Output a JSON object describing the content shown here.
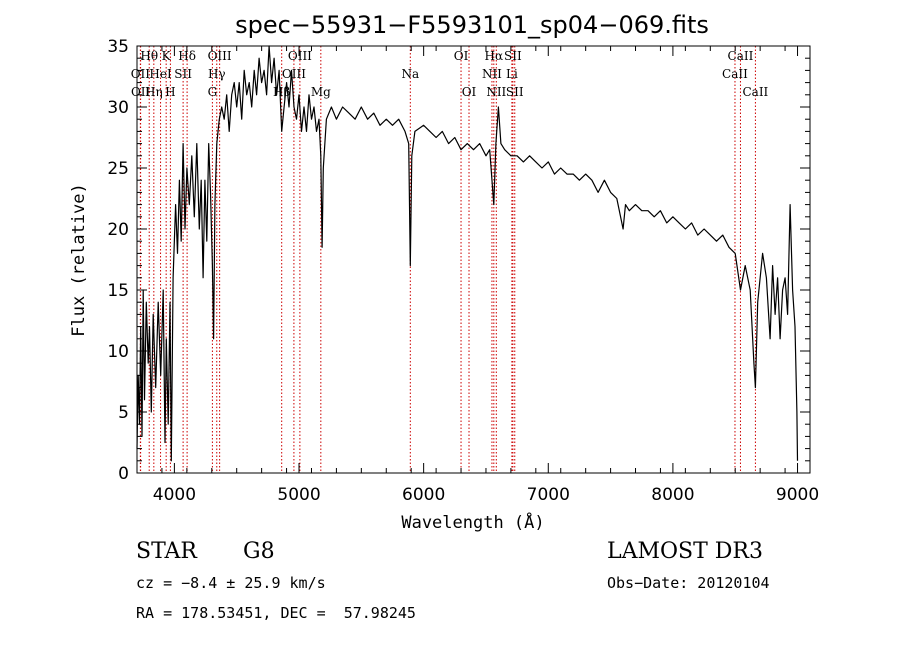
{
  "chart_data": {
    "type": "line",
    "title": "spec−55931−F5593101_sp04−069.fits",
    "xlabel": "Wavelength (Å)",
    "ylabel": "Flux (relative)",
    "xlim": [
      3700,
      9100
    ],
    "ylim": [
      0,
      35
    ],
    "xticks": [
      4000,
      5000,
      6000,
      7000,
      8000,
      9000
    ],
    "yticks": [
      0,
      5,
      10,
      15,
      20,
      25,
      30,
      35
    ],
    "line_color": "#000000",
    "marker_color": "#cc0000",
    "spectral_lines": [
      {
        "label": "Hθ",
        "wavelength": 3798,
        "row": 0
      },
      {
        "label": "K",
        "wavelength": 3934,
        "row": 0
      },
      {
        "label": "Hδ",
        "wavelength": 4102,
        "row": 0
      },
      {
        "label": "OIII",
        "wavelength": 4363,
        "row": 0
      },
      {
        "label": "OIII",
        "wavelength": 5007,
        "row": 0
      },
      {
        "label": "OI",
        "wavelength": 6300,
        "row": 0
      },
      {
        "label": "Hα",
        "wavelength": 6563,
        "row": 0
      },
      {
        "label": "SII",
        "wavelength": 6716,
        "row": 0
      },
      {
        "label": "CaII",
        "wavelength": 8542,
        "row": 0
      },
      {
        "label": "OII",
        "wavelength": 3727,
        "row": 1
      },
      {
        "label": "HeI",
        "wavelength": 3889,
        "row": 1
      },
      {
        "label": "SII",
        "wavelength": 4070,
        "row": 1
      },
      {
        "label": "Hγ",
        "wavelength": 4340,
        "row": 1
      },
      {
        "label": "OIII",
        "wavelength": 4959,
        "row": 1
      },
      {
        "label": "NII",
        "wavelength": 6548,
        "row": 1
      },
      {
        "label": "Li",
        "wavelength": 6708,
        "row": 1
      },
      {
        "label": "CaII",
        "wavelength": 8498,
        "row": 1
      },
      {
        "label": "OII",
        "wavelength": 3729,
        "row": 2
      },
      {
        "label": "Hη",
        "wavelength": 3835,
        "row": 2
      },
      {
        "label": "H",
        "wavelength": 3968,
        "row": 2
      },
      {
        "label": "G",
        "wavelength": 4305,
        "row": 2
      },
      {
        "label": "Hβ",
        "wavelength": 4861,
        "row": 2
      },
      {
        "label": "Mg",
        "wavelength": 5175,
        "row": 2
      },
      {
        "label": "Na",
        "wavelength": 5893,
        "row": 1
      },
      {
        "label": "OI",
        "wavelength": 6364,
        "row": 2
      },
      {
        "label": "NII",
        "wavelength": 6583,
        "row": 2
      },
      {
        "label": "SII",
        "wavelength": 6731,
        "row": 2
      },
      {
        "label": "CaII",
        "wavelength": 8662,
        "row": 2
      }
    ],
    "spectrum": [
      [
        3700,
        2
      ],
      [
        3710,
        8
      ],
      [
        3720,
        4
      ],
      [
        3730,
        12
      ],
      [
        3740,
        3
      ],
      [
        3750,
        15
      ],
      [
        3760,
        6
      ],
      [
        3775,
        14
      ],
      [
        3790,
        9
      ],
      [
        3800,
        12
      ],
      [
        3815,
        5
      ],
      [
        3830,
        13
      ],
      [
        3850,
        7
      ],
      [
        3870,
        14
      ],
      [
        3890,
        8
      ],
      [
        3910,
        15
      ],
      [
        3925,
        2.5
      ],
      [
        3935,
        11
      ],
      [
        3950,
        4
      ],
      [
        3965,
        14
      ],
      [
        3975,
        1
      ],
      [
        3990,
        16
      ],
      [
        4010,
        22
      ],
      [
        4025,
        18
      ],
      [
        4040,
        24
      ],
      [
        4055,
        19
      ],
      [
        4070,
        27
      ],
      [
        4085,
        20
      ],
      [
        4100,
        25
      ],
      [
        4120,
        22
      ],
      [
        4140,
        26
      ],
      [
        4160,
        21
      ],
      [
        4180,
        27
      ],
      [
        4200,
        20
      ],
      [
        4215,
        24
      ],
      [
        4230,
        16
      ],
      [
        4245,
        24
      ],
      [
        4260,
        19
      ],
      [
        4275,
        27
      ],
      [
        4290,
        23
      ],
      [
        4305,
        17
      ],
      [
        4315,
        11
      ],
      [
        4325,
        22
      ],
      [
        4340,
        27
      ],
      [
        4360,
        29
      ],
      [
        4380,
        30
      ],
      [
        4400,
        29
      ],
      [
        4420,
        31
      ],
      [
        4440,
        28
      ],
      [
        4460,
        31
      ],
      [
        4480,
        32
      ],
      [
        4500,
        30
      ],
      [
        4520,
        32
      ],
      [
        4540,
        29
      ],
      [
        4560,
        33
      ],
      [
        4580,
        31
      ],
      [
        4600,
        32
      ],
      [
        4620,
        30
      ],
      [
        4640,
        33
      ],
      [
        4660,
        31
      ],
      [
        4680,
        34
      ],
      [
        4700,
        32
      ],
      [
        4720,
        33
      ],
      [
        4740,
        31
      ],
      [
        4760,
        35
      ],
      [
        4780,
        32
      ],
      [
        4800,
        34
      ],
      [
        4820,
        31
      ],
      [
        4840,
        33
      ],
      [
        4861,
        28
      ],
      [
        4880,
        30
      ],
      [
        4900,
        32
      ],
      [
        4920,
        30
      ],
      [
        4940,
        33
      ],
      [
        4960,
        30
      ],
      [
        4980,
        29
      ],
      [
        5000,
        31
      ],
      [
        5020,
        28
      ],
      [
        5040,
        30
      ],
      [
        5060,
        28
      ],
      [
        5080,
        31
      ],
      [
        5100,
        29
      ],
      [
        5120,
        30
      ],
      [
        5140,
        28
      ],
      [
        5160,
        29
      ],
      [
        5175,
        26
      ],
      [
        5185,
        18.5
      ],
      [
        5195,
        25
      ],
      [
        5220,
        29
      ],
      [
        5260,
        30
      ],
      [
        5300,
        29
      ],
      [
        5350,
        30
      ],
      [
        5400,
        29.5
      ],
      [
        5450,
        29
      ],
      [
        5500,
        30
      ],
      [
        5550,
        29
      ],
      [
        5600,
        29.5
      ],
      [
        5650,
        28.5
      ],
      [
        5700,
        29
      ],
      [
        5750,
        28.5
      ],
      [
        5800,
        29
      ],
      [
        5850,
        28
      ],
      [
        5880,
        27
      ],
      [
        5893,
        17
      ],
      [
        5905,
        26
      ],
      [
        5930,
        28
      ],
      [
        6000,
        28.5
      ],
      [
        6050,
        28
      ],
      [
        6100,
        27.5
      ],
      [
        6150,
        28
      ],
      [
        6200,
        27
      ],
      [
        6250,
        27.5
      ],
      [
        6300,
        26.5
      ],
      [
        6350,
        27
      ],
      [
        6400,
        26.5
      ],
      [
        6450,
        27
      ],
      [
        6500,
        26
      ],
      [
        6530,
        26.5
      ],
      [
        6563,
        22
      ],
      [
        6580,
        27
      ],
      [
        6600,
        30
      ],
      [
        6620,
        27
      ],
      [
        6650,
        26.5
      ],
      [
        6700,
        26
      ],
      [
        6750,
        26
      ],
      [
        6800,
        25.5
      ],
      [
        6850,
        26
      ],
      [
        6900,
        25.5
      ],
      [
        6950,
        25
      ],
      [
        7000,
        25.5
      ],
      [
        7050,
        24.5
      ],
      [
        7100,
        25
      ],
      [
        7150,
        24.5
      ],
      [
        7200,
        24.5
      ],
      [
        7250,
        24
      ],
      [
        7300,
        24.5
      ],
      [
        7350,
        24
      ],
      [
        7400,
        23
      ],
      [
        7450,
        24
      ],
      [
        7500,
        23
      ],
      [
        7550,
        22.5
      ],
      [
        7600,
        20
      ],
      [
        7620,
        22
      ],
      [
        7650,
        21.5
      ],
      [
        7700,
        22
      ],
      [
        7750,
        21.5
      ],
      [
        7800,
        21.5
      ],
      [
        7850,
        21
      ],
      [
        7900,
        21.5
      ],
      [
        7950,
        20.5
      ],
      [
        8000,
        21
      ],
      [
        8050,
        20.5
      ],
      [
        8100,
        20
      ],
      [
        8150,
        20.5
      ],
      [
        8200,
        19.5
      ],
      [
        8250,
        20
      ],
      [
        8300,
        19.5
      ],
      [
        8350,
        19
      ],
      [
        8400,
        19.5
      ],
      [
        8450,
        18.5
      ],
      [
        8500,
        18
      ],
      [
        8542,
        15
      ],
      [
        8580,
        17
      ],
      [
        8620,
        15
      ],
      [
        8650,
        9
      ],
      [
        8662,
        7
      ],
      [
        8680,
        14
      ],
      [
        8720,
        18
      ],
      [
        8750,
        16
      ],
      [
        8780,
        11
      ],
      [
        8800,
        17
      ],
      [
        8820,
        13
      ],
      [
        8840,
        16
      ],
      [
        8860,
        11
      ],
      [
        8880,
        15
      ],
      [
        8900,
        16
      ],
      [
        8920,
        13
      ],
      [
        8940,
        22
      ],
      [
        8960,
        15
      ],
      [
        8980,
        12
      ],
      [
        8995,
        5
      ],
      [
        9000,
        1
      ]
    ]
  },
  "info": {
    "object_class": "STAR",
    "subclass": "G8",
    "redshift": "cz = −8.4 ± 25.9 km/s",
    "coords": "RA = 178.53451, DEC =  57.98245",
    "survey": "LAMOST DR3",
    "obs_date": "Obs−Date: 20120104"
  }
}
